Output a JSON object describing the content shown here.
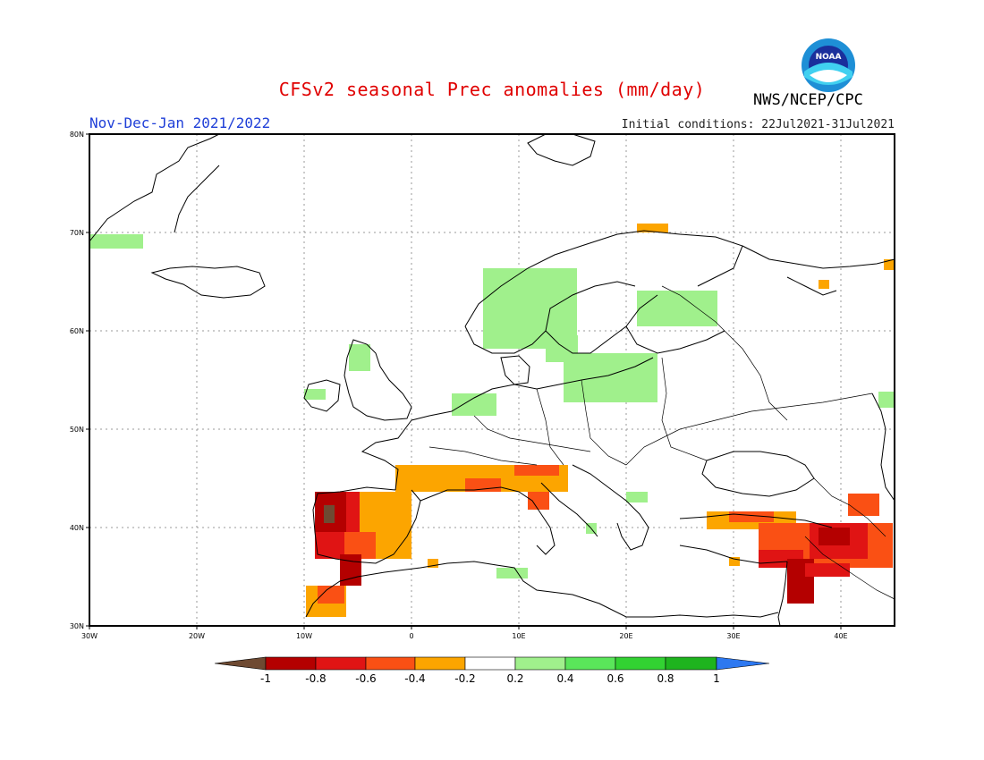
{
  "header": {
    "title": "CFSv2 seasonal Prec anomalies (mm/day)",
    "period": "Nov-Dec-Jan 2021/2022",
    "initial_conditions": "Initial conditions: 22Jul2021-31Jul2021",
    "agency": "NWS/NCEP/CPC",
    "logo_text": "NOAA"
  },
  "axes": {
    "lat_labels": [
      "80N",
      "70N",
      "60N",
      "50N",
      "40N",
      "30N"
    ],
    "lon_labels": [
      "30W",
      "20W",
      "10W",
      "0",
      "10E",
      "20E",
      "30E",
      "40E"
    ]
  },
  "colorbar": {
    "labels": [
      "-1",
      "-0.8",
      "-0.6",
      "-0.4",
      "-0.2",
      "0.2",
      "0.4",
      "0.6",
      "0.8",
      "1"
    ],
    "colors": {
      "below_min": "#6e4a32",
      "bins": [
        "#b40000",
        "#e01414",
        "#fa5014",
        "#fca500",
        "#ffffff",
        "#a0f08c",
        "#5ae65a",
        "#32d232",
        "#1eb41e"
      ],
      "above_max": "#2d78f0"
    }
  },
  "legend_colors": {
    "wet_light": "#a0f08c",
    "dry_light": "#fca500",
    "dry_mid": "#fa5014",
    "dry_strong": "#e01414",
    "dry_severe": "#b40000",
    "dry_extreme": "#6e4a32"
  }
}
